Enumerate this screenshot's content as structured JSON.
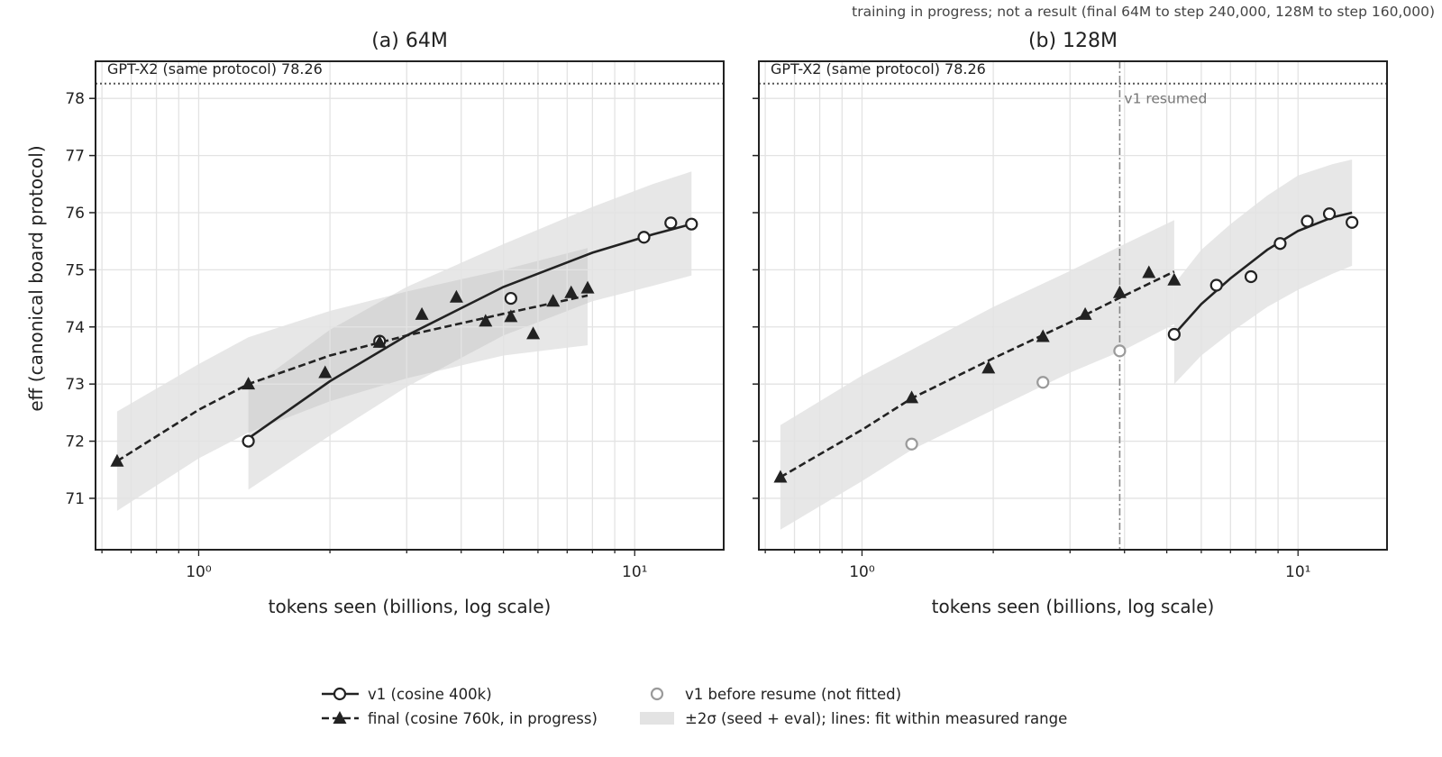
{
  "figure": {
    "note": "training in progress; not a result (final 64M to step 240,000, 128M to step 160,000)"
  },
  "colors": {
    "ink": "#222222",
    "band": "#d9d9d9",
    "grid": "#e3e3e3",
    "ref_line": "#555555",
    "pre_resume": "#9a9a9a"
  },
  "chart_data": [
    {
      "type": "scatter",
      "title": "(a) 64M",
      "xlabel": "tokens seen (billions, log scale)",
      "ylabel": "eff (canonical board protocol)",
      "xscale": "log",
      "xlim": [
        0.58,
        16
      ],
      "ylim": [
        70.1,
        78.65
      ],
      "yticks": [
        71,
        72,
        73,
        74,
        75,
        76,
        77,
        78
      ],
      "xticks": [
        {
          "value": 1,
          "label": "10⁰"
        },
        {
          "value": 10,
          "label": "10¹"
        }
      ],
      "grid": true,
      "reference": {
        "label": "GPT-X2 (same protocol) 78.26",
        "value": 78.26
      },
      "series": [
        {
          "name": "v1 (cosine 400k)",
          "marker": "circle-open",
          "x": [
            1.3,
            2.6,
            5.2,
            10.5,
            12.1,
            13.5
          ],
          "y": [
            72.0,
            73.75,
            74.5,
            75.57,
            75.82,
            75.8
          ]
        },
        {
          "name": "final (cosine 760k, in progress)",
          "marker": "triangle-filled",
          "x": [
            0.65,
            1.3,
            1.95,
            2.6,
            3.25,
            3.9,
            4.55,
            5.2,
            5.85,
            6.5,
            7.15,
            7.8
          ],
          "y": [
            71.65,
            73.0,
            73.2,
            73.73,
            74.22,
            74.52,
            74.1,
            74.18,
            73.88,
            74.45,
            74.6,
            74.68
          ]
        }
      ],
      "fits": [
        {
          "series": "v1 (cosine 400k)",
          "style": "solid",
          "x": [
            1.3,
            2.0,
            3.0,
            5.0,
            8.0,
            11.0,
            13.5
          ],
          "y": [
            72.05,
            73.05,
            73.85,
            74.7,
            75.3,
            75.62,
            75.8
          ]
        },
        {
          "series": "final (cosine 760k, in progress)",
          "style": "dashed",
          "x": [
            0.65,
            1.0,
            1.3,
            2.0,
            3.0,
            5.0,
            7.8
          ],
          "y": [
            71.65,
            72.55,
            73.0,
            73.5,
            73.85,
            74.23,
            74.55
          ]
        }
      ],
      "bands": [
        {
          "series": "v1 (cosine 400k)",
          "x": [
            1.3,
            2.0,
            3.0,
            5.0,
            8.0,
            11.0,
            13.5
          ],
          "lower": [
            71.15,
            72.1,
            72.95,
            73.85,
            74.45,
            74.72,
            74.9
          ],
          "upper": [
            72.9,
            73.95,
            74.7,
            75.45,
            76.1,
            76.5,
            76.72
          ]
        },
        {
          "series": "final (cosine 760k, in progress)",
          "x": [
            0.65,
            1.0,
            1.3,
            2.0,
            3.0,
            5.0,
            7.8
          ],
          "lower": [
            70.78,
            71.7,
            72.15,
            72.7,
            73.1,
            73.5,
            73.68
          ],
          "upper": [
            72.52,
            73.35,
            73.82,
            74.28,
            74.62,
            75.0,
            75.38
          ]
        }
      ]
    },
    {
      "type": "scatter",
      "title": "(b) 128M",
      "xlabel": "tokens seen (billions, log scale)",
      "ylabel": "",
      "xscale": "log",
      "xlim": [
        0.58,
        16
      ],
      "ylim": [
        70.1,
        78.65
      ],
      "yticks": [
        71,
        72,
        73,
        74,
        75,
        76,
        77,
        78
      ],
      "xticks": [
        {
          "value": 1,
          "label": "10⁰"
        },
        {
          "value": 10,
          "label": "10¹"
        }
      ],
      "grid": true,
      "reference": {
        "label": "GPT-X2 (same protocol) 78.26",
        "value": 78.26
      },
      "vline": {
        "label": "v1 resumed",
        "value": 3.9
      },
      "series": [
        {
          "name": "v1 (cosine 400k)",
          "marker": "circle-open",
          "x": [
            5.2,
            6.5,
            7.8,
            9.1,
            10.5,
            11.8,
            13.3
          ],
          "y": [
            73.87,
            74.73,
            74.88,
            75.46,
            75.85,
            75.98,
            75.83
          ]
        },
        {
          "name": "final (cosine 760k, in progress)",
          "marker": "triangle-filled",
          "x": [
            0.65,
            1.3,
            1.95,
            2.6,
            3.25,
            3.9,
            4.55,
            5.2
          ],
          "y": [
            71.37,
            72.76,
            73.28,
            73.83,
            74.22,
            74.6,
            74.95,
            74.82
          ]
        },
        {
          "name": "v1 before resume (not fitted)",
          "marker": "circle-open-gray",
          "x": [
            1.3,
            2.6,
            3.9
          ],
          "y": [
            71.95,
            73.03,
            73.58
          ]
        }
      ],
      "fits": [
        {
          "series": "v1 (cosine 400k)",
          "style": "solid",
          "x": [
            5.2,
            6.0,
            7.0,
            8.5,
            10.0,
            12.0,
            13.3
          ],
          "y": [
            73.87,
            74.4,
            74.85,
            75.35,
            75.68,
            75.92,
            76.0
          ]
        },
        {
          "series": "final (cosine 760k, in progress)",
          "style": "dashed",
          "x": [
            0.65,
            1.0,
            1.3,
            2.0,
            3.0,
            4.0,
            5.2
          ],
          "y": [
            71.37,
            72.2,
            72.75,
            73.45,
            74.08,
            74.55,
            74.97
          ]
        }
      ],
      "bands": [
        {
          "series": "v1 (cosine 400k)",
          "x": [
            5.2,
            6.0,
            7.0,
            8.5,
            10.0,
            12.0,
            13.3
          ],
          "lower": [
            73.0,
            73.5,
            73.9,
            74.35,
            74.65,
            74.93,
            75.07
          ],
          "upper": [
            74.75,
            75.35,
            75.8,
            76.3,
            76.65,
            76.85,
            76.93
          ]
        },
        {
          "series": "final (cosine 760k, in progress)",
          "x": [
            0.65,
            1.0,
            1.3,
            2.0,
            3.0,
            4.0,
            5.2
          ],
          "lower": [
            70.45,
            71.3,
            71.85,
            72.55,
            73.2,
            73.6,
            74.05
          ],
          "upper": [
            72.28,
            73.15,
            73.6,
            74.35,
            74.98,
            75.45,
            75.87
          ]
        }
      ]
    }
  ],
  "legend": {
    "items": [
      {
        "label": "v1 (cosine 400k)",
        "kind": "circle-line"
      },
      {
        "label": "final (cosine 760k, in progress)",
        "kind": "triangle-dashed"
      },
      {
        "label": "v1 before resume (not fitted)",
        "kind": "circle-gray"
      },
      {
        "label": "±2σ (seed + eval); lines: fit within measured range",
        "kind": "band"
      }
    ]
  }
}
